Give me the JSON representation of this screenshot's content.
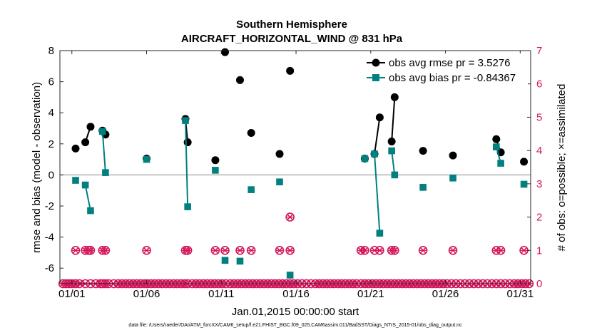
{
  "chart_data": {
    "type": "line",
    "title": "Southern Hemisphere",
    "subtitle": "AIRCRAFT_HORIZONTAL_WIND @ 831 hPa",
    "xlabel": "Jan.01,2015 00:00:00 start",
    "ylabel": "rmse and bias (model - observation)",
    "ylabel_right": "# of obs: o=possible; ×=assimilated",
    "footnote": "data file: /Users/raeder/DAI/ATM_forcXX/CAM6_setup/f.e21.FHIST_BGC.f09_025.CAM6assim.011/BadSST/Diags_NTrS_2015-01/obs_diag_output.nc",
    "xlim": [
      0.2,
      31.7
    ],
    "ylim": [
      -7,
      8
    ],
    "ylim_right": [
      0,
      7
    ],
    "xticks": [
      1,
      6,
      11,
      16,
      21,
      26,
      31
    ],
    "xtick_labels": [
      "01/01",
      "01/06",
      "01/11",
      "01/16",
      "01/21",
      "01/26",
      "01/31"
    ],
    "yticks": [
      -6,
      -4,
      -2,
      0,
      2,
      4,
      6,
      8
    ],
    "yticks_right": [
      0,
      1,
      2,
      3,
      4,
      5,
      6,
      7
    ],
    "colors": {
      "rmse": "#000000",
      "bias": "#00807f",
      "count": "#d4145a",
      "zero_line": "#b3b3b3"
    },
    "series": [
      {
        "name": "obs avg rmse pr = 3.5276",
        "color": "#000000",
        "marker": "circle",
        "segments": [
          [
            [
              1.25,
              1.7
            ]
          ],
          [
            [
              1.9,
              2.1
            ],
            [
              2.25,
              3.1
            ]
          ],
          [
            [
              3.05,
              2.85
            ],
            [
              3.25,
              2.6
            ]
          ],
          [
            [
              6.0,
              1.05
            ]
          ],
          [
            [
              8.6,
              3.6
            ],
            [
              8.75,
              2.1
            ]
          ],
          [
            [
              10.6,
              0.95
            ]
          ],
          [
            [
              11.25,
              7.9
            ]
          ],
          [
            [
              12.25,
              6.1
            ]
          ],
          [
            [
              13.0,
              2.7
            ]
          ],
          [
            [
              14.9,
              1.35
            ]
          ],
          [
            [
              15.6,
              6.7
            ]
          ],
          [
            [
              20.6,
              1.05
            ]
          ],
          [
            [
              21.25,
              1.35
            ],
            [
              21.6,
              3.7
            ]
          ],
          [
            [
              22.4,
              2.15
            ],
            [
              22.6,
              5.0
            ]
          ],
          [
            [
              24.5,
              1.55
            ]
          ],
          [
            [
              26.5,
              1.25
            ]
          ],
          [
            [
              29.4,
              2.3
            ],
            [
              29.7,
              1.45
            ]
          ],
          [
            [
              31.25,
              0.85
            ]
          ]
        ]
      },
      {
        "name": "obs avg bias pr = -0.84367",
        "color": "#00807f",
        "marker": "square",
        "segments": [
          [
            [
              1.25,
              -0.35
            ]
          ],
          [
            [
              1.9,
              -0.65
            ],
            [
              2.25,
              -2.3
            ]
          ],
          [
            [
              3.05,
              2.8
            ],
            [
              3.25,
              0.15
            ]
          ],
          [
            [
              6.0,
              1.0
            ]
          ],
          [
            [
              8.6,
              3.5
            ],
            [
              8.75,
              -2.05
            ]
          ],
          [
            [
              10.6,
              0.3
            ]
          ],
          [
            [
              11.25,
              -5.5
            ]
          ],
          [
            [
              12.25,
              -5.55
            ]
          ],
          [
            [
              13.0,
              -0.95
            ]
          ],
          [
            [
              14.9,
              -0.45
            ]
          ],
          [
            [
              15.6,
              -6.45
            ]
          ],
          [
            [
              20.6,
              1.05
            ]
          ],
          [
            [
              21.25,
              1.35
            ],
            [
              21.6,
              -3.75
            ]
          ],
          [
            [
              22.4,
              1.55
            ],
            [
              22.6,
              0.0
            ]
          ],
          [
            [
              24.5,
              -0.8
            ]
          ],
          [
            [
              26.5,
              -0.2
            ]
          ],
          [
            [
              29.4,
              1.8
            ],
            [
              29.7,
              0.75
            ]
          ],
          [
            [
              31.25,
              -0.6
            ]
          ]
        ]
      }
    ],
    "obs_count": {
      "name": "# of obs",
      "points": [
        [
          0.4,
          0
        ],
        [
          0.6,
          0
        ],
        [
          0.8,
          0
        ],
        [
          1.0,
          0
        ],
        [
          1.25,
          0
        ],
        [
          1.5,
          0
        ],
        [
          1.9,
          0
        ],
        [
          2.25,
          0
        ],
        [
          2.6,
          0
        ],
        [
          2.9,
          0
        ],
        [
          3.05,
          0
        ],
        [
          3.25,
          0
        ],
        [
          3.45,
          0
        ],
        [
          3.8,
          0
        ],
        [
          4.1,
          0
        ],
        [
          4.35,
          0
        ],
        [
          4.6,
          0
        ],
        [
          4.85,
          0
        ],
        [
          5.1,
          0
        ],
        [
          5.35,
          0
        ],
        [
          5.6,
          0
        ],
        [
          5.85,
          0
        ],
        [
          6.05,
          0
        ],
        [
          6.3,
          0
        ],
        [
          6.55,
          0
        ],
        [
          6.8,
          0
        ],
        [
          7.05,
          0
        ],
        [
          7.3,
          0
        ],
        [
          7.55,
          0
        ],
        [
          7.8,
          0
        ],
        [
          8.05,
          0
        ],
        [
          8.3,
          0
        ],
        [
          8.55,
          0
        ],
        [
          8.75,
          0
        ],
        [
          9.05,
          0
        ],
        [
          9.3,
          0
        ],
        [
          9.55,
          0
        ],
        [
          9.8,
          0
        ],
        [
          10.05,
          0
        ],
        [
          10.3,
          0
        ],
        [
          10.55,
          0
        ],
        [
          10.8,
          0
        ],
        [
          11.05,
          0
        ],
        [
          11.3,
          0
        ],
        [
          11.6,
          0
        ],
        [
          11.85,
          0
        ],
        [
          12.1,
          0
        ],
        [
          12.35,
          0
        ],
        [
          12.6,
          0
        ],
        [
          12.85,
          0
        ],
        [
          13.1,
          0
        ],
        [
          13.35,
          0
        ],
        [
          13.6,
          0
        ],
        [
          13.85,
          0
        ],
        [
          14.1,
          0
        ],
        [
          14.35,
          0
        ],
        [
          14.6,
          0
        ],
        [
          14.85,
          0
        ],
        [
          15.1,
          0
        ],
        [
          15.35,
          0
        ],
        [
          15.6,
          0
        ],
        [
          15.85,
          0
        ],
        [
          16.1,
          0
        ],
        [
          16.4,
          0
        ],
        [
          16.7,
          0
        ],
        [
          17.0,
          0
        ],
        [
          17.3,
          0
        ],
        [
          17.55,
          0
        ],
        [
          17.8,
          0
        ],
        [
          18.05,
          0
        ],
        [
          18.3,
          0
        ],
        [
          18.55,
          0
        ],
        [
          18.8,
          0
        ],
        [
          19.05,
          0
        ],
        [
          19.3,
          0
        ],
        [
          19.55,
          0
        ],
        [
          19.8,
          0
        ],
        [
          20.05,
          0
        ],
        [
          20.35,
          0
        ],
        [
          20.6,
          0
        ],
        [
          20.85,
          0
        ],
        [
          21.1,
          0
        ],
        [
          21.35,
          0
        ],
        [
          21.6,
          0
        ],
        [
          21.85,
          0
        ],
        [
          22.1,
          0
        ],
        [
          22.35,
          0
        ],
        [
          22.6,
          0
        ],
        [
          22.85,
          0
        ],
        [
          23.1,
          0
        ],
        [
          23.35,
          0
        ],
        [
          23.6,
          0
        ],
        [
          23.85,
          0
        ],
        [
          24.1,
          0
        ],
        [
          24.35,
          0
        ],
        [
          24.6,
          0
        ],
        [
          24.85,
          0
        ],
        [
          25.1,
          0
        ],
        [
          25.35,
          0
        ],
        [
          25.6,
          0
        ],
        [
          25.85,
          0
        ],
        [
          26.1,
          0
        ],
        [
          26.4,
          0
        ],
        [
          26.7,
          0
        ],
        [
          27.0,
          0
        ],
        [
          27.3,
          0
        ],
        [
          27.6,
          0
        ],
        [
          27.9,
          0
        ],
        [
          28.2,
          0
        ],
        [
          28.5,
          0
        ],
        [
          28.8,
          0
        ],
        [
          29.1,
          0
        ],
        [
          29.4,
          0
        ],
        [
          29.7,
          0
        ],
        [
          30.0,
          0
        ],
        [
          30.3,
          0
        ],
        [
          30.6,
          0
        ],
        [
          30.85,
          0
        ],
        [
          31.1,
          0
        ],
        [
          31.35,
          0
        ],
        [
          31.6,
          0
        ],
        [
          1.25,
          1
        ],
        [
          1.9,
          1
        ],
        [
          2.1,
          1
        ],
        [
          2.25,
          1
        ],
        [
          3.05,
          1
        ],
        [
          3.25,
          1
        ],
        [
          6.0,
          1
        ],
        [
          8.6,
          1
        ],
        [
          8.75,
          1
        ],
        [
          10.6,
          1
        ],
        [
          11.25,
          1
        ],
        [
          12.25,
          1
        ],
        [
          13.0,
          1
        ],
        [
          14.9,
          1
        ],
        [
          15.6,
          1
        ],
        [
          20.35,
          1
        ],
        [
          20.6,
          1
        ],
        [
          21.25,
          1
        ],
        [
          21.6,
          1
        ],
        [
          22.4,
          1
        ],
        [
          22.6,
          1
        ],
        [
          24.5,
          1
        ],
        [
          26.5,
          1
        ],
        [
          29.4,
          1
        ],
        [
          29.7,
          1
        ],
        [
          31.25,
          1
        ],
        [
          15.6,
          2
        ]
      ]
    }
  }
}
